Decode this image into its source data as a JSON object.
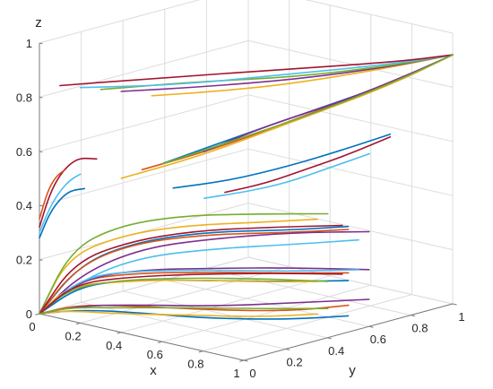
{
  "chart_data": {
    "type": "line",
    "view": "3d",
    "grid": true,
    "xlabel": "x",
    "ylabel": "y",
    "zlabel": "z",
    "xlim": [
      0,
      1
    ],
    "ylim": [
      0,
      1
    ],
    "zlim": [
      0,
      1
    ],
    "xticks": [
      "0",
      "0.2",
      "0.4",
      "0.6",
      "0.8",
      "1"
    ],
    "yticks": [
      "0",
      "0.2",
      "0.4",
      "0.6",
      "0.8",
      "1"
    ],
    "zticks": [
      "0",
      "0.2",
      "0.4",
      "0.6",
      "0.8",
      "1"
    ],
    "xtick_values": [
      0,
      0.2,
      0.4,
      0.6,
      0.8,
      1
    ],
    "ytick_values": [
      0,
      0.2,
      0.4,
      0.6,
      0.8,
      1
    ],
    "ztick_values": [
      0,
      0.2,
      0.4,
      0.6,
      0.8,
      1
    ],
    "colors": [
      "#0072BD",
      "#D95319",
      "#EDB120",
      "#7E2F8E",
      "#77AC30",
      "#4DBEEE",
      "#A2142F"
    ],
    "series": [
      {
        "x": [
          0.0,
          0.15,
          0.35,
          0.6,
          0.85,
          1.0
        ],
        "y": [
          0.0,
          0.05,
          0.12,
          0.22,
          0.36,
          0.5
        ],
        "z": [
          0.0,
          0.2,
          0.3,
          0.36,
          0.38,
          0.39
        ]
      },
      {
        "x": [
          0.0,
          0.12,
          0.3,
          0.55,
          0.8,
          0.95
        ],
        "y": [
          0.0,
          0.06,
          0.15,
          0.28,
          0.42,
          0.55
        ],
        "z": [
          0.0,
          0.18,
          0.28,
          0.33,
          0.35,
          0.36
        ]
      },
      {
        "x": [
          0.0,
          0.1,
          0.3,
          0.5,
          0.75,
          0.9
        ],
        "y": [
          0.0,
          0.04,
          0.1,
          0.2,
          0.32,
          0.45
        ],
        "z": [
          0.0,
          0.22,
          0.32,
          0.37,
          0.4,
          0.41
        ]
      },
      {
        "x": [
          0.0,
          0.14,
          0.32,
          0.55,
          0.78,
          1.0
        ],
        "y": [
          0.0,
          0.07,
          0.18,
          0.3,
          0.45,
          0.6
        ],
        "z": [
          0.0,
          0.16,
          0.26,
          0.31,
          0.34,
          0.35
        ]
      },
      {
        "x": [
          0.0,
          0.1,
          0.25,
          0.45,
          0.7,
          0.9
        ],
        "y": [
          0.0,
          0.05,
          0.12,
          0.24,
          0.38,
          0.5
        ],
        "z": [
          0.0,
          0.24,
          0.34,
          0.39,
          0.41,
          0.42
        ]
      },
      {
        "x": [
          0.0,
          0.15,
          0.35,
          0.6,
          0.85,
          1.0
        ],
        "y": [
          0.0,
          0.06,
          0.14,
          0.26,
          0.4,
          0.55
        ],
        "z": [
          0.0,
          0.14,
          0.24,
          0.29,
          0.32,
          0.33
        ]
      },
      {
        "x": [
          0.0,
          0.12,
          0.3,
          0.5,
          0.72,
          0.92
        ],
        "y": [
          0.0,
          0.05,
          0.13,
          0.25,
          0.4,
          0.55
        ],
        "z": [
          0.0,
          0.2,
          0.29,
          0.34,
          0.36,
          0.37
        ]
      },
      {
        "x": [
          0.0,
          0.15,
          0.35,
          0.6,
          0.85,
          1.0
        ],
        "y": [
          0.0,
          0.05,
          0.12,
          0.22,
          0.36,
          0.5
        ],
        "z": [
          0.0,
          0.12,
          0.16,
          0.18,
          0.19,
          0.19
        ]
      },
      {
        "x": [
          0.0,
          0.12,
          0.3,
          0.55,
          0.8,
          0.95
        ],
        "y": [
          0.0,
          0.06,
          0.15,
          0.28,
          0.42,
          0.55
        ],
        "z": [
          0.0,
          0.13,
          0.17,
          0.19,
          0.2,
          0.2
        ]
      },
      {
        "x": [
          0.0,
          0.1,
          0.3,
          0.5,
          0.75,
          0.9
        ],
        "y": [
          0.0,
          0.04,
          0.1,
          0.2,
          0.32,
          0.45
        ],
        "z": [
          0.0,
          0.11,
          0.15,
          0.17,
          0.18,
          0.18
        ]
      },
      {
        "x": [
          0.0,
          0.14,
          0.32,
          0.55,
          0.78,
          1.0
        ],
        "y": [
          0.0,
          0.07,
          0.18,
          0.3,
          0.45,
          0.6
        ],
        "z": [
          0.0,
          0.14,
          0.18,
          0.2,
          0.21,
          0.21
        ]
      },
      {
        "x": [
          0.0,
          0.1,
          0.25,
          0.45,
          0.7,
          0.9
        ],
        "y": [
          0.0,
          0.05,
          0.12,
          0.24,
          0.38,
          0.5
        ],
        "z": [
          0.0,
          0.1,
          0.14,
          0.16,
          0.17,
          0.17
        ]
      },
      {
        "x": [
          0.0,
          0.15,
          0.35,
          0.6,
          0.85,
          1.0
        ],
        "y": [
          0.0,
          0.06,
          0.14,
          0.26,
          0.4,
          0.55
        ],
        "z": [
          0.0,
          0.15,
          0.19,
          0.21,
          0.22,
          0.22
        ]
      },
      {
        "x": [
          0.0,
          0.12,
          0.3,
          0.5,
          0.72,
          0.92
        ],
        "y": [
          0.0,
          0.05,
          0.13,
          0.25,
          0.4,
          0.55
        ],
        "z": [
          0.0,
          0.12,
          0.16,
          0.18,
          0.19,
          0.19
        ]
      },
      {
        "x": [
          0.0,
          0.15,
          0.35,
          0.6,
          0.85,
          1.0
        ],
        "y": [
          0.0,
          0.05,
          0.12,
          0.22,
          0.36,
          0.5
        ],
        "z": [
          0.0,
          0.03,
          0.04,
          0.04,
          0.05,
          0.06
        ]
      },
      {
        "x": [
          0.0,
          0.12,
          0.3,
          0.55,
          0.8,
          0.95
        ],
        "y": [
          0.0,
          0.06,
          0.15,
          0.28,
          0.42,
          0.55
        ],
        "z": [
          0.0,
          0.04,
          0.05,
          0.05,
          0.06,
          0.08
        ]
      },
      {
        "x": [
          0.0,
          0.1,
          0.3,
          0.5,
          0.75,
          0.9
        ],
        "y": [
          0.0,
          0.04,
          0.1,
          0.2,
          0.32,
          0.45
        ],
        "z": [
          0.0,
          0.02,
          0.03,
          0.04,
          0.05,
          0.06
        ]
      },
      {
        "x": [
          0.0,
          0.14,
          0.32,
          0.55,
          0.78,
          1.0
        ],
        "y": [
          0.0,
          0.07,
          0.18,
          0.3,
          0.45,
          0.6
        ],
        "z": [
          0.0,
          0.04,
          0.05,
          0.06,
          0.08,
          0.1
        ]
      },
      {
        "x": [
          0.0,
          0.1,
          0.25,
          0.45,
          0.7,
          0.9
        ],
        "y": [
          0.0,
          0.05,
          0.12,
          0.24,
          0.38,
          0.5
        ],
        "z": [
          0.0,
          0.03,
          0.04,
          0.05,
          0.06,
          0.07
        ]
      },
      {
        "x": [
          0.0,
          0.05,
          0.1,
          0.15,
          0.2
        ],
        "y": [
          0.0,
          0.0,
          0.0,
          0.0,
          0.0
        ],
        "z": [
          0.3,
          0.4,
          0.47,
          0.52,
          0.55
        ]
      },
      {
        "x": [
          0.0,
          0.05,
          0.1,
          0.15,
          0.2,
          0.28
        ],
        "y": [
          0.0,
          0.0,
          0.0,
          0.0,
          0.0,
          0.0
        ],
        "z": [
          0.32,
          0.45,
          0.53,
          0.58,
          0.61,
          0.62
        ]
      },
      {
        "x": [
          0.0,
          0.05,
          0.1,
          0.15,
          0.22
        ],
        "y": [
          0.0,
          0.0,
          0.0,
          0.0,
          0.0
        ],
        "z": [
          0.28,
          0.38,
          0.44,
          0.48,
          0.5
        ]
      },
      {
        "x": [
          0.0,
          0.04,
          0.08,
          0.12
        ],
        "y": [
          0.0,
          0.0,
          0.0,
          0.0
        ],
        "z": [
          0.35,
          0.46,
          0.52,
          0.55
        ]
      },
      {
        "x": [
          0.55,
          0.7,
          0.85,
          0.95,
          1.0
        ],
        "y": [
          0.0,
          0.15,
          0.35,
          0.7,
          1.0
        ],
        "z": [
          0.9,
          0.91,
          0.92,
          0.92,
          0.92
        ]
      },
      {
        "x": [
          0.4,
          0.6,
          0.8,
          0.95,
          1.0
        ],
        "y": [
          0.0,
          0.2,
          0.45,
          0.75,
          1.0
        ],
        "z": [
          0.89,
          0.9,
          0.91,
          0.92,
          0.92
        ]
      },
      {
        "x": [
          0.3,
          0.5,
          0.75,
          0.92,
          1.0
        ],
        "y": [
          0.0,
          0.25,
          0.5,
          0.8,
          1.0
        ],
        "z": [
          0.88,
          0.89,
          0.9,
          0.91,
          0.92
        ]
      },
      {
        "x": [
          0.2,
          0.45,
          0.7,
          0.9,
          1.0
        ],
        "y": [
          0.0,
          0.2,
          0.5,
          0.8,
          1.0
        ],
        "z": [
          0.87,
          0.88,
          0.9,
          0.91,
          0.92
        ]
      },
      {
        "x": [
          0.1,
          0.35,
          0.65,
          0.9,
          1.0
        ],
        "y": [
          0.0,
          0.25,
          0.55,
          0.85,
          1.0
        ],
        "z": [
          0.86,
          0.88,
          0.9,
          0.91,
          0.92
        ]
      },
      {
        "x": [
          0.5,
          0.65,
          0.8,
          0.95,
          1.0
        ],
        "y": [
          0.1,
          0.3,
          0.55,
          0.8,
          1.0
        ],
        "z": [
          0.62,
          0.7,
          0.78,
          0.86,
          0.92
        ]
      },
      {
        "x": [
          0.4,
          0.6,
          0.78,
          0.93,
          1.0
        ],
        "y": [
          0.1,
          0.28,
          0.5,
          0.78,
          1.0
        ],
        "z": [
          0.58,
          0.66,
          0.76,
          0.85,
          0.92
        ]
      },
      {
        "x": [
          0.35,
          0.55,
          0.75,
          0.92,
          1.0
        ],
        "y": [
          0.05,
          0.25,
          0.5,
          0.78,
          1.0
        ],
        "z": [
          0.55,
          0.63,
          0.74,
          0.84,
          0.92
        ]
      },
      {
        "x": [
          0.6,
          0.72,
          0.85,
          0.95,
          1.0
        ],
        "y": [
          0.2,
          0.4,
          0.6,
          0.82,
          1.0
        ],
        "z": [
          0.66,
          0.74,
          0.8,
          0.87,
          0.92
        ]
      },
      {
        "x": [
          0.45,
          0.62,
          0.8,
          0.94,
          1.0
        ],
        "y": [
          0.15,
          0.35,
          0.58,
          0.82,
          1.0
        ],
        "z": [
          0.6,
          0.68,
          0.77,
          0.86,
          0.92
        ]
      },
      {
        "x": [
          0.5,
          0.6,
          0.7,
          0.8,
          0.9
        ],
        "y": [
          0.3,
          0.4,
          0.5,
          0.6,
          0.7
        ],
        "z": [
          0.45,
          0.47,
          0.5,
          0.55,
          0.6
        ]
      },
      {
        "x": [
          0.55,
          0.65,
          0.75,
          0.85,
          0.95
        ],
        "y": [
          0.35,
          0.45,
          0.55,
          0.65,
          0.75
        ],
        "z": [
          0.47,
          0.5,
          0.55,
          0.6,
          0.66
        ]
      },
      {
        "x": [
          0.45,
          0.58,
          0.7,
          0.82,
          0.95
        ],
        "y": [
          0.2,
          0.35,
          0.5,
          0.62,
          0.75
        ],
        "z": [
          0.5,
          0.52,
          0.56,
          0.61,
          0.67
        ]
      }
    ]
  }
}
